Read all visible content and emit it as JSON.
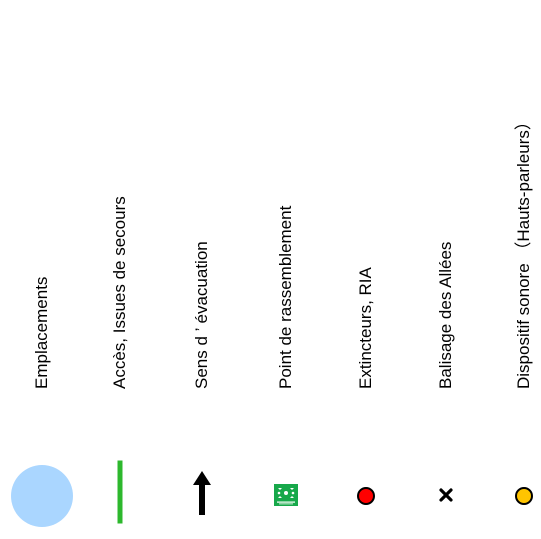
{
  "legend": {
    "items": [
      {
        "label": "Emplacements",
        "symbol": "light-blue-circle",
        "color": "#aad6ff"
      },
      {
        "label": "Accès, Issues de secours",
        "symbol": "green-vertical-line",
        "color": "#2db82d"
      },
      {
        "label": "Sens d ’ évacuation",
        "symbol": "black-up-arrow",
        "color": "#000000"
      },
      {
        "label": "Point de rassemblement",
        "symbol": "assembly-point-sign",
        "color": "#17a84a"
      },
      {
        "label": "Extincteurs, RIA",
        "symbol": "red-dot",
        "color": "#ff0000"
      },
      {
        "label": "Balisage des Allées",
        "symbol": "black-cross",
        "color": "#000000"
      },
      {
        "label": "Dispositif sonore （Hauts-parleurs）",
        "symbol": "yellow-dot",
        "color": "#ffc400"
      }
    ]
  }
}
